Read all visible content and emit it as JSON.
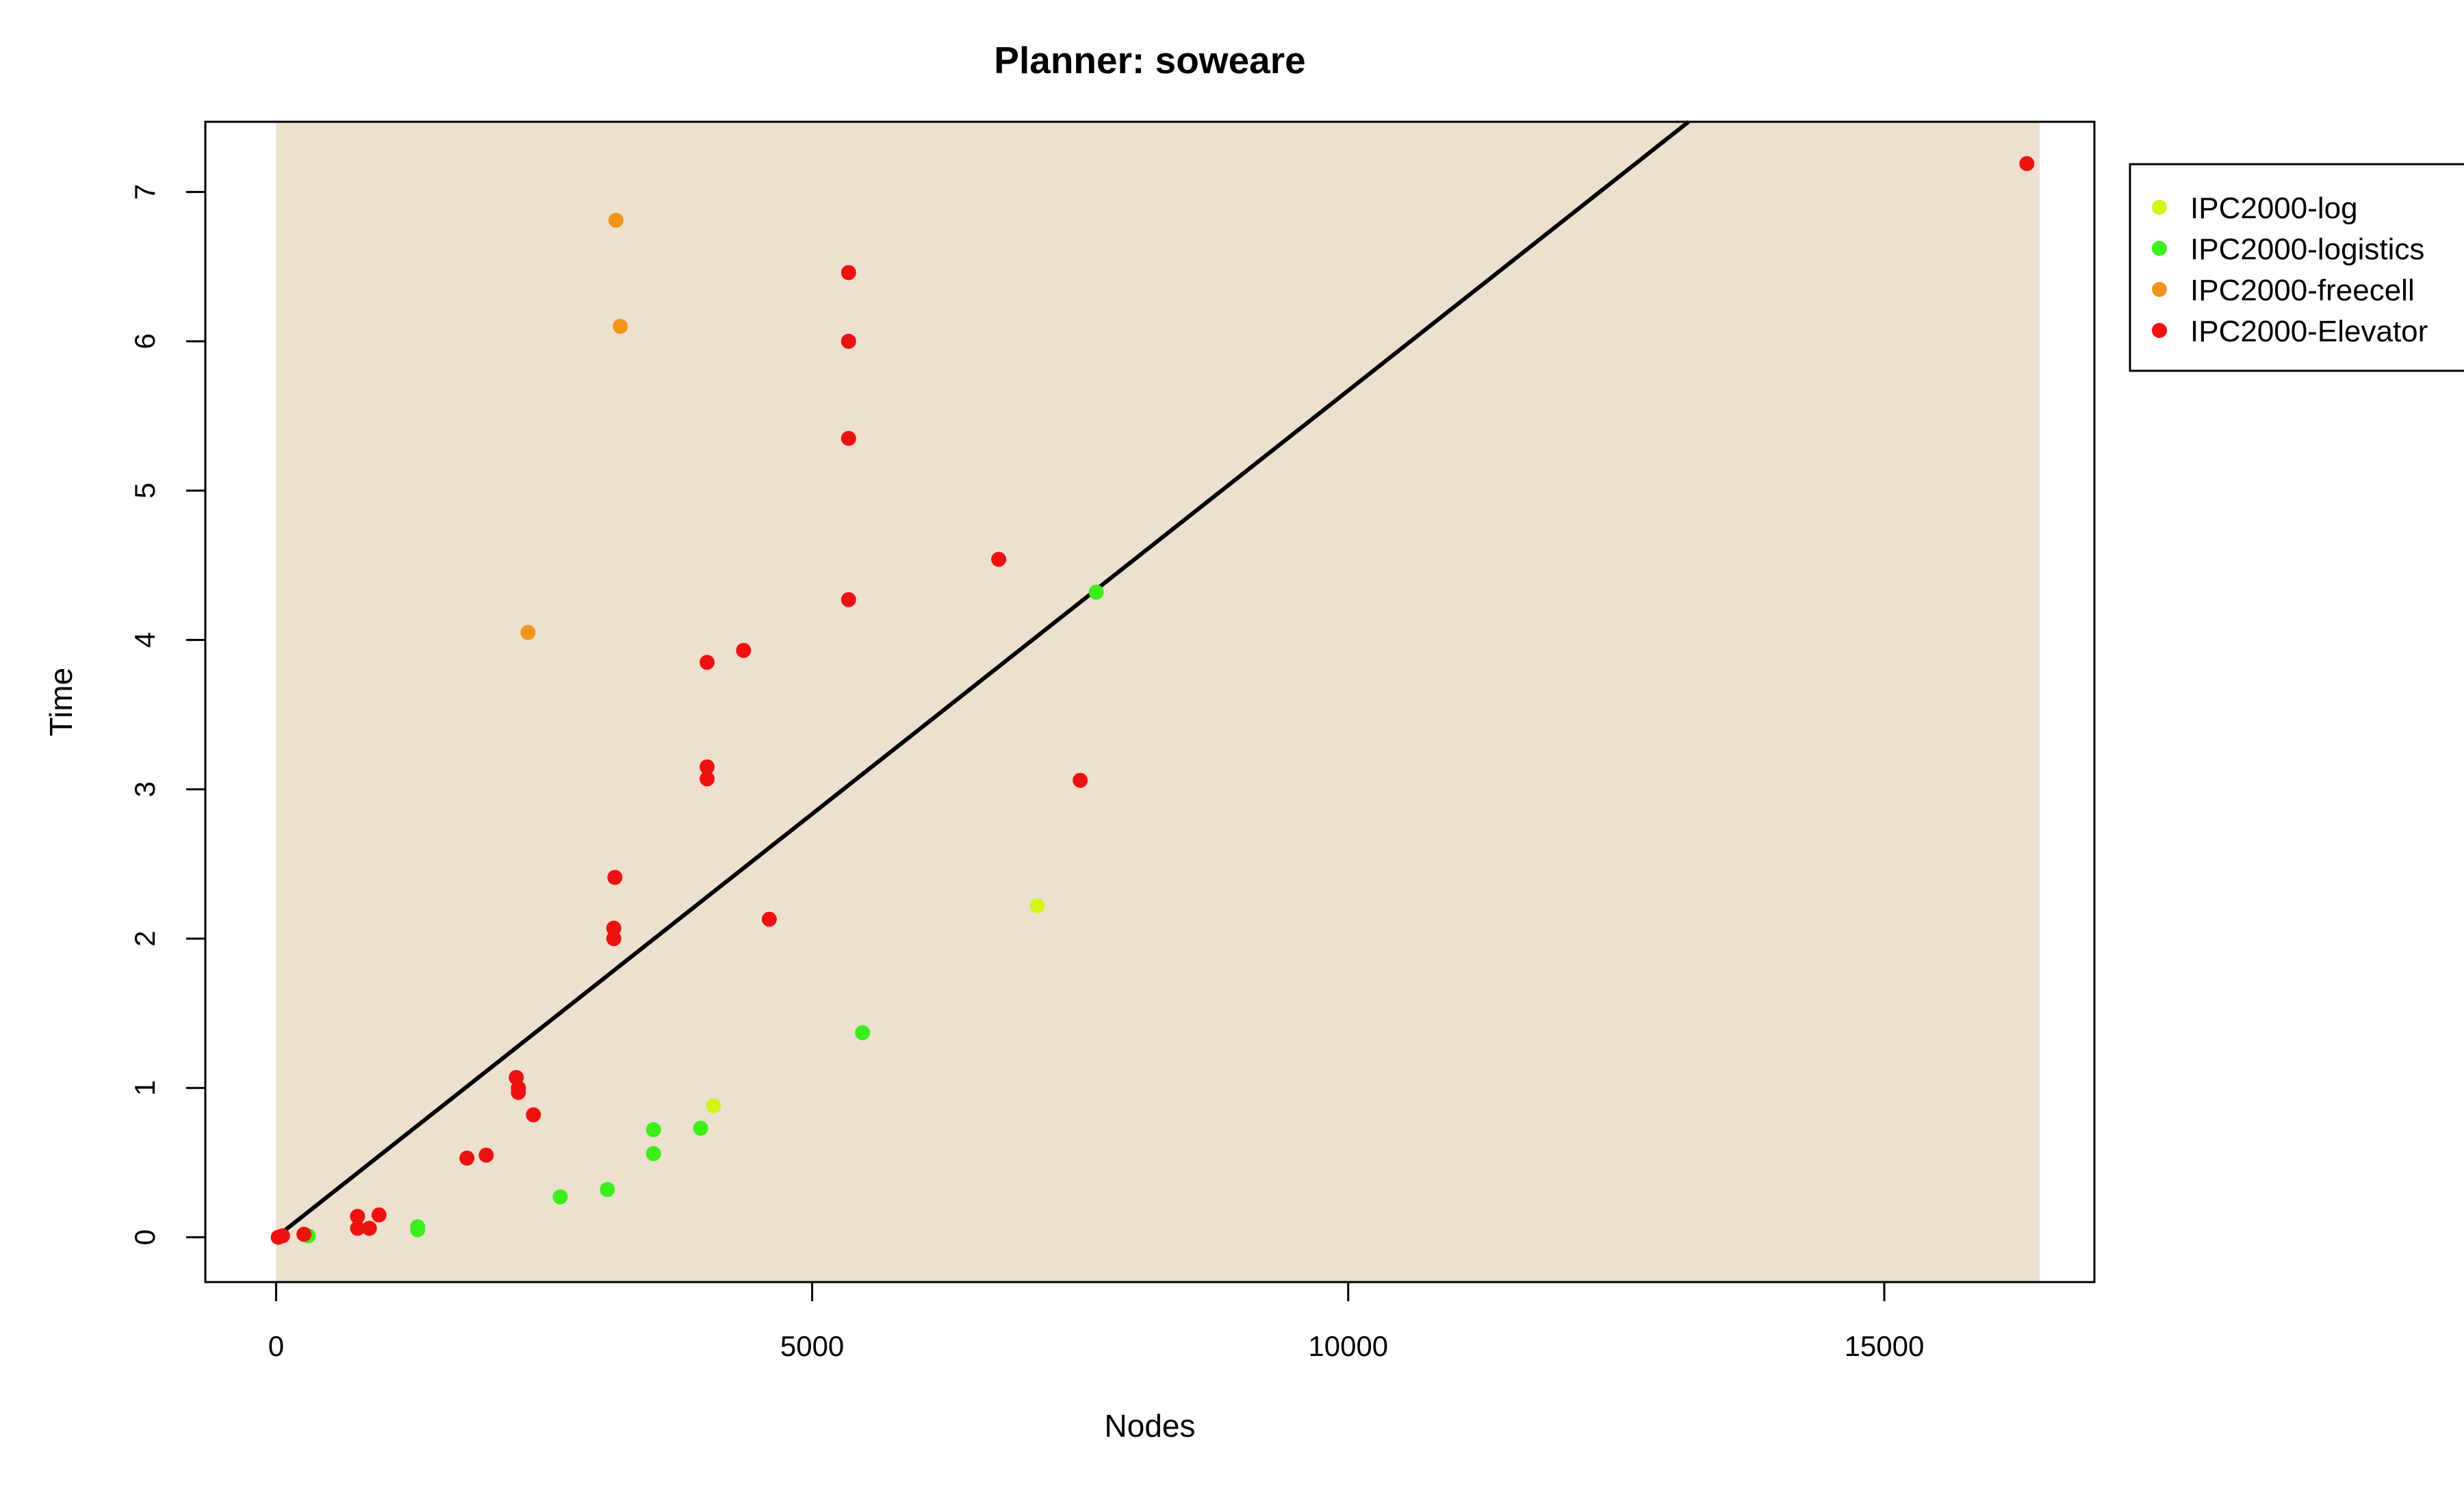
{
  "chart_data": {
    "type": "scatter",
    "title": "Planner: soweare",
    "xlabel": "Nodes",
    "ylabel": "Time",
    "xlim": [
      -660,
      16960
    ],
    "ylim": [
      -0.3,
      7.47
    ],
    "x_ticks": [
      0,
      5000,
      10000,
      15000
    ],
    "y_ticks": [
      0,
      1,
      2,
      3,
      4,
      5,
      6,
      7
    ],
    "background_region": {
      "x_range": [
        0,
        16450
      ],
      "color": "#ede0cf"
    },
    "legend_position": "right-outside-top",
    "regression_line": {
      "intercept": 0.0,
      "slope": 0.000567,
      "color": "#000000"
    },
    "series": [
      {
        "name": "IPC2000-log",
        "color": "#d4f41c",
        "points": [
          {
            "x": 4080,
            "y": 0.88
          },
          {
            "x": 7100,
            "y": 2.22
          }
        ]
      },
      {
        "name": "IPC2000-logistics",
        "color": "#3aef1b",
        "points": [
          {
            "x": 300,
            "y": 0.01
          },
          {
            "x": 1320,
            "y": 0.05
          },
          {
            "x": 1320,
            "y": 0.07
          },
          {
            "x": 2650,
            "y": 0.27
          },
          {
            "x": 3090,
            "y": 0.32
          },
          {
            "x": 3520,
            "y": 0.56
          },
          {
            "x": 3520,
            "y": 0.72
          },
          {
            "x": 3960,
            "y": 0.73
          },
          {
            "x": 5470,
            "y": 1.37
          },
          {
            "x": 7650,
            "y": 4.32
          }
        ]
      },
      {
        "name": "IPC2000-freecell",
        "color": "#f2951a",
        "points": [
          {
            "x": 2350,
            "y": 4.05
          },
          {
            "x": 3170,
            "y": 6.81
          },
          {
            "x": 3210,
            "y": 6.1
          }
        ]
      },
      {
        "name": "IPC2000-Elevator",
        "color": "#ee1111",
        "points": [
          {
            "x": 20,
            "y": 0.0
          },
          {
            "x": 60,
            "y": 0.01
          },
          {
            "x": 260,
            "y": 0.02
          },
          {
            "x": 760,
            "y": 0.06
          },
          {
            "x": 760,
            "y": 0.14
          },
          {
            "x": 870,
            "y": 0.06
          },
          {
            "x": 960,
            "y": 0.15
          },
          {
            "x": 1780,
            "y": 0.53
          },
          {
            "x": 1960,
            "y": 0.55
          },
          {
            "x": 2240,
            "y": 1.07
          },
          {
            "x": 2260,
            "y": 0.97
          },
          {
            "x": 2260,
            "y": 1.0
          },
          {
            "x": 2400,
            "y": 0.82
          },
          {
            "x": 3150,
            "y": 2.0
          },
          {
            "x": 3150,
            "y": 2.07
          },
          {
            "x": 3160,
            "y": 2.41
          },
          {
            "x": 4020,
            "y": 3.07
          },
          {
            "x": 4020,
            "y": 3.15
          },
          {
            "x": 4020,
            "y": 3.85
          },
          {
            "x": 4360,
            "y": 3.93
          },
          {
            "x": 4600,
            "y": 2.13
          },
          {
            "x": 5340,
            "y": 4.27
          },
          {
            "x": 5340,
            "y": 5.35
          },
          {
            "x": 5340,
            "y": 6.0
          },
          {
            "x": 5340,
            "y": 6.46
          },
          {
            "x": 6740,
            "y": 4.54
          },
          {
            "x": 7500,
            "y": 3.06
          },
          {
            "x": 16330,
            "y": 7.19
          }
        ]
      }
    ]
  }
}
